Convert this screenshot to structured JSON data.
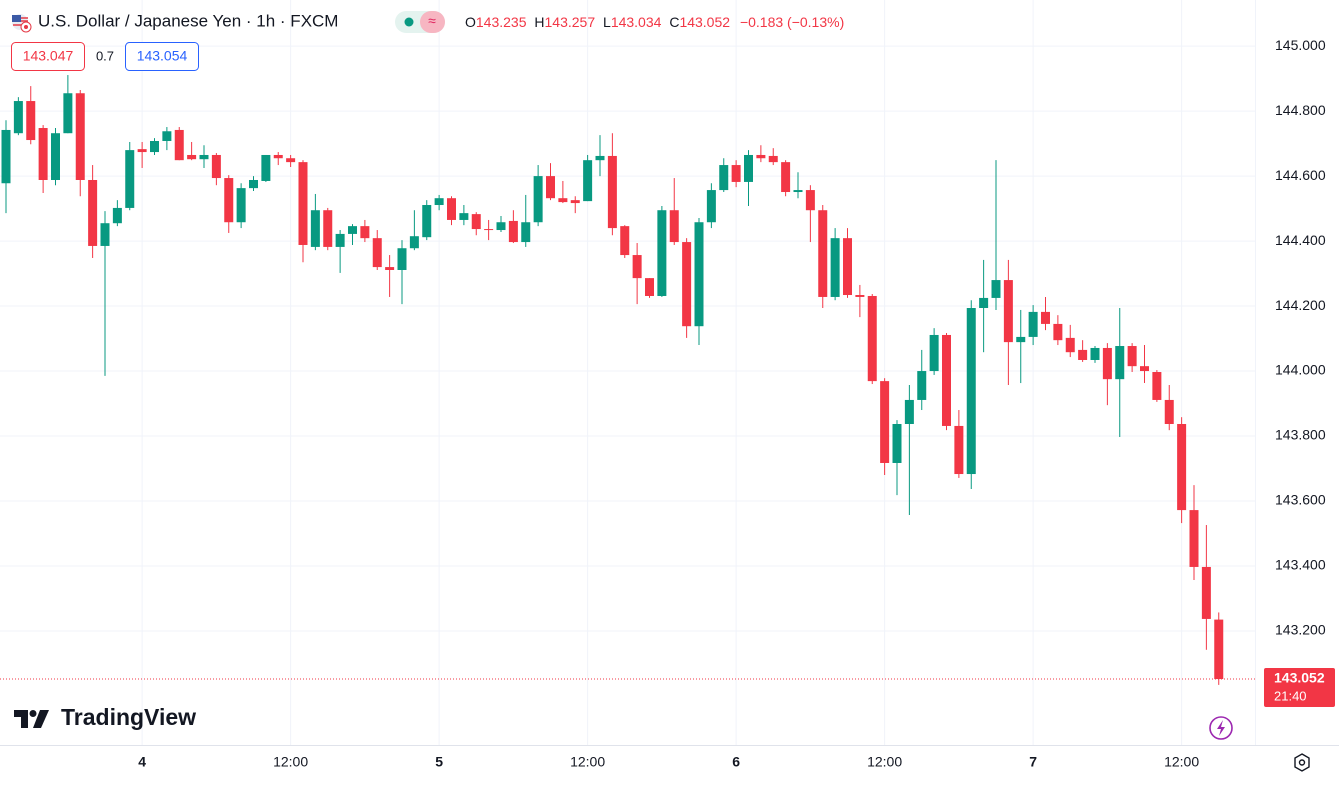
{
  "header": {
    "title": "U.S. Dollar / Japanese Yen · 1h · FXCM",
    "ohlc": [
      {
        "label": "O",
        "value": "143.235"
      },
      {
        "label": "H",
        "value": "143.257"
      },
      {
        "label": "L",
        "value": "143.034"
      },
      {
        "label": "C",
        "value": "143.052"
      }
    ],
    "change": "−0.183 (−0.13%)",
    "bid": "143.047",
    "spread": "0.7",
    "ask": "143.054"
  },
  "logo": "TradingView",
  "chart_data": {
    "type": "candlestick",
    "categories": [
      null,
      null,
      null,
      null,
      null,
      null,
      null,
      null,
      null,
      null,
      null,
      "4",
      null,
      null,
      null,
      null,
      null,
      null,
      null,
      null,
      null,
      null,
      null,
      "12:00",
      null,
      null,
      null,
      null,
      null,
      null,
      null,
      null,
      null,
      null,
      null,
      "5",
      null,
      null,
      null,
      null,
      null,
      null,
      null,
      null,
      null,
      null,
      null,
      "12:00",
      null,
      null,
      null,
      null,
      null,
      null,
      null,
      null,
      null,
      null,
      null,
      "6",
      null,
      null,
      null,
      null,
      null,
      null,
      null,
      null,
      null,
      null,
      null,
      "12:00",
      null,
      null,
      null,
      null,
      null,
      null,
      null,
      null,
      null,
      null,
      null,
      "7",
      null,
      null,
      null,
      null,
      null,
      null,
      null,
      null,
      null,
      null,
      null,
      "12:00",
      null,
      null,
      null
    ],
    "open": [
      144.578,
      144.732,
      144.831,
      144.748,
      144.588,
      144.732,
      144.855,
      144.588,
      144.385,
      144.455,
      144.502,
      144.683,
      144.674,
      144.708,
      144.742,
      144.665,
      144.652,
      144.665,
      144.594,
      144.458,
      144.563,
      144.585,
      144.665,
      144.655,
      144.643,
      144.382,
      144.495,
      144.382,
      144.422,
      144.446,
      144.409,
      144.32,
      144.311,
      144.378,
      144.412,
      144.511,
      144.532,
      144.465,
      144.483,
      144.437,
      144.434,
      144.462,
      144.397,
      144.458,
      144.6,
      144.532,
      144.526,
      144.523,
      144.649,
      144.662,
      144.446,
      144.357,
      144.286,
      144.231,
      144.495,
      144.397,
      144.138,
      144.458,
      144.557,
      144.634,
      144.582,
      144.665,
      144.662,
      144.643,
      144.551,
      144.557,
      144.495,
      144.228,
      144.409,
      144.234,
      144.231,
      143.969,
      143.717,
      143.837,
      143.911,
      144.0,
      144.111,
      143.831,
      143.683,
      144.194,
      144.225,
      144.28,
      144.089,
      144.105,
      144.182,
      144.145,
      144.102,
      144.065,
      144.034,
      144.071,
      143.975,
      144.077,
      144.015,
      143.997,
      143.911,
      143.837,
      143.572,
      143.397,
      143.235
    ],
    "high": [
      144.772,
      144.843,
      144.877,
      144.757,
      144.748,
      144.911,
      144.865,
      144.634,
      144.492,
      144.526,
      144.705,
      144.705,
      144.717,
      144.751,
      144.751,
      144.705,
      144.695,
      144.671,
      144.603,
      144.578,
      144.6,
      144.665,
      144.674,
      144.665,
      144.649,
      144.545,
      144.502,
      144.434,
      144.452,
      144.465,
      144.434,
      144.357,
      144.403,
      144.495,
      144.526,
      144.542,
      144.538,
      144.511,
      144.489,
      144.465,
      144.477,
      144.495,
      144.542,
      144.634,
      144.64,
      144.585,
      144.538,
      144.665,
      144.726,
      144.732,
      144.449,
      144.394,
      144.286,
      144.508,
      144.594,
      144.409,
      144.471,
      144.578,
      144.655,
      144.649,
      144.68,
      144.695,
      144.686,
      144.649,
      144.612,
      144.572,
      144.511,
      144.44,
      144.44,
      144.265,
      144.237,
      143.978,
      143.849,
      143.957,
      144.065,
      144.132,
      144.117,
      143.88,
      144.218,
      144.342,
      144.649,
      144.342,
      144.188,
      144.203,
      144.228,
      144.172,
      144.142,
      144.095,
      144.077,
      144.086,
      144.194,
      144.086,
      144.08,
      144.003,
      143.957,
      143.858,
      143.649,
      143.526,
      143.257
    ],
    "low": [
      144.486,
      144.726,
      144.698,
      144.548,
      144.572,
      144.732,
      144.538,
      144.348,
      143.985,
      144.446,
      144.495,
      144.625,
      144.665,
      144.68,
      144.649,
      144.649,
      144.625,
      144.572,
      144.425,
      144.44,
      144.554,
      144.582,
      144.634,
      144.628,
      144.335,
      144.372,
      144.372,
      144.302,
      144.388,
      144.397,
      144.311,
      144.228,
      144.206,
      144.372,
      144.403,
      144.495,
      144.449,
      144.449,
      144.418,
      144.403,
      144.428,
      144.394,
      144.382,
      144.446,
      144.526,
      144.517,
      144.486,
      144.523,
      144.6,
      144.418,
      144.348,
      144.206,
      144.225,
      144.228,
      144.388,
      144.102,
      144.08,
      144.44,
      144.551,
      144.566,
      144.508,
      144.643,
      144.634,
      144.538,
      144.532,
      144.397,
      144.194,
      144.218,
      144.225,
      144.166,
      143.96,
      143.68,
      143.618,
      143.557,
      143.88,
      143.988,
      143.818,
      143.671,
      143.637,
      144.058,
      144.188,
      143.957,
      143.963,
      144.08,
      144.126,
      144.08,
      144.043,
      144.028,
      144.025,
      143.895,
      143.797,
      143.997,
      143.963,
      143.905,
      143.818,
      143.532,
      143.357,
      143.142,
      143.034
    ],
    "close": [
      144.742,
      144.831,
      144.711,
      144.588,
      144.732,
      144.855,
      144.588,
      144.385,
      144.455,
      144.502,
      144.68,
      144.674,
      144.708,
      144.738,
      144.649,
      144.652,
      144.665,
      144.594,
      144.458,
      144.563,
      144.588,
      144.665,
      144.655,
      144.643,
      144.388,
      144.495,
      144.382,
      144.422,
      144.446,
      144.409,
      144.32,
      144.311,
      144.378,
      144.415,
      144.511,
      144.532,
      144.465,
      144.486,
      144.437,
      144.434,
      144.458,
      144.397,
      144.458,
      144.6,
      144.532,
      144.52,
      144.517,
      144.649,
      144.662,
      144.44,
      144.357,
      144.286,
      144.231,
      144.495,
      144.397,
      144.138,
      144.458,
      144.557,
      144.634,
      144.582,
      144.665,
      144.655,
      144.643,
      144.551,
      144.557,
      144.495,
      144.228,
      144.409,
      144.234,
      144.228,
      143.969,
      143.717,
      143.837,
      143.911,
      144.0,
      144.111,
      143.831,
      143.683,
      144.194,
      144.225,
      144.28,
      144.089,
      144.105,
      144.182,
      144.145,
      144.095,
      144.058,
      144.034,
      144.071,
      143.975,
      144.077,
      144.015,
      144.0,
      143.911,
      143.837,
      143.572,
      143.397,
      143.237,
      143.052
    ],
    "up_color": "#089981",
    "down_color": "#f23645",
    "ylim": [
      142.849,
      145.142
    ],
    "yticks": [
      {
        "value": 143.2,
        "label": "143.200"
      },
      {
        "value": 143.4,
        "label": "143.400"
      },
      {
        "value": 143.6,
        "label": "143.600"
      },
      {
        "value": 143.8,
        "label": "143.800"
      },
      {
        "value": 144,
        "label": "144.000"
      },
      {
        "value": 144.2,
        "label": "144.200"
      },
      {
        "value": 144.4,
        "label": "144.400"
      },
      {
        "value": 144.6,
        "label": "144.600"
      },
      {
        "value": 144.8,
        "label": "144.800"
      },
      {
        "value": 145,
        "label": "145.000"
      }
    ],
    "grid": true,
    "last_price_label": "143.052",
    "countdown": "21:40"
  }
}
